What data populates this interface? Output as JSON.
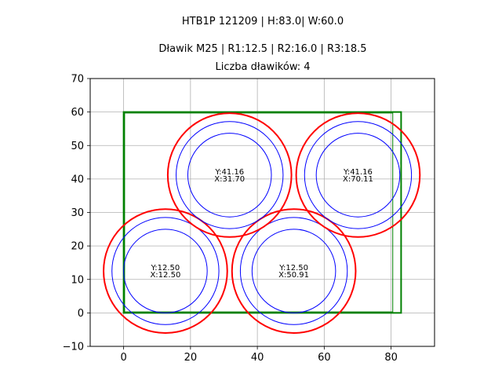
{
  "chart_data": {
    "type": "scatter",
    "titles": [
      "HTB1P 121209 | H:83.0| W:60.0",
      "Dławik M25 | R1:12.5 | R2:16.0 | R3:18.5",
      "Liczba dławików: 4"
    ],
    "xlim": [
      -10,
      93
    ],
    "ylim": [
      -10,
      70
    ],
    "x_ticks": [
      0,
      20,
      40,
      60,
      80
    ],
    "y_ticks": [
      -10,
      0,
      10,
      20,
      30,
      40,
      50,
      60,
      70
    ],
    "grid": true,
    "enclosure": {
      "outer": {
        "x0": 0,
        "y0": 0,
        "x1": 83,
        "y1": 60,
        "color": "#008000"
      },
      "inner": {
        "x0": 0.3,
        "y0": 0.3,
        "x1": 80.5,
        "y1": 59.7,
        "color": "#008000"
      }
    },
    "radii": {
      "r1": 12.5,
      "r2": 16.0,
      "r3": 18.5
    },
    "colors": {
      "inner_circles": "#0000ff",
      "outer_circle": "#ff0000"
    },
    "glands": [
      {
        "x": 12.5,
        "y": 12.5,
        "label_y": "Y:12.50",
        "label_x": "X:12.50"
      },
      {
        "x": 50.91,
        "y": 12.5,
        "label_y": "Y:12.50",
        "label_x": "X:50.91"
      },
      {
        "x": 31.7,
        "y": 41.16,
        "label_y": "Y:41.16",
        "label_x": "X:31.70"
      },
      {
        "x": 70.11,
        "y": 41.16,
        "label_y": "Y:41.16",
        "label_x": "X:70.11"
      }
    ]
  }
}
